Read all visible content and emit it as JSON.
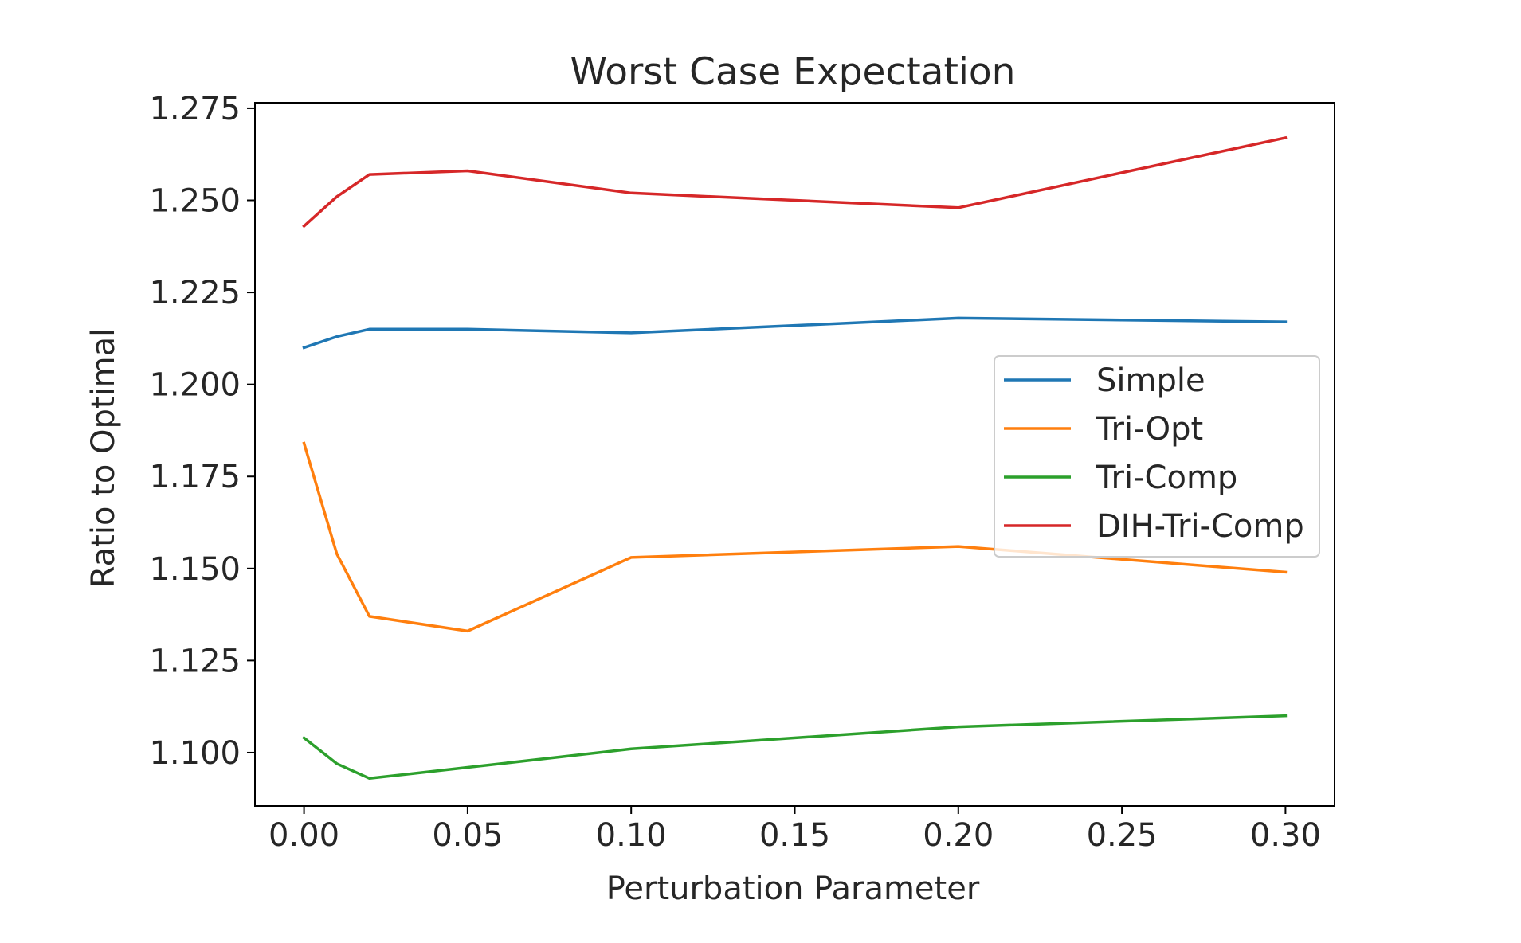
{
  "chart_data": {
    "type": "line",
    "title": "Worst Case Expectation",
    "xlabel": "Perturbation Parameter",
    "ylabel": "Ratio to Optimal",
    "xlim": [
      -0.015,
      0.315
    ],
    "ylim": [
      1.0855,
      1.2765
    ],
    "xticks": [
      0.0,
      0.05,
      0.1,
      0.15,
      0.2,
      0.25,
      0.3
    ],
    "xtick_labels": [
      "0.00",
      "0.05",
      "0.10",
      "0.15",
      "0.20",
      "0.25",
      "0.30"
    ],
    "yticks": [
      1.1,
      1.125,
      1.15,
      1.175,
      1.2,
      1.225,
      1.25,
      1.275
    ],
    "ytick_labels": [
      "1.100",
      "1.125",
      "1.150",
      "1.175",
      "1.200",
      "1.225",
      "1.250",
      "1.275"
    ],
    "grid": false,
    "legend_position": "center-right",
    "x": [
      0.0,
      0.01,
      0.02,
      0.05,
      0.1,
      0.2,
      0.3
    ],
    "series": [
      {
        "name": "Simple",
        "color": "#1f77b4",
        "values": [
          1.21,
          1.213,
          1.215,
          1.215,
          1.214,
          1.218,
          1.217
        ]
      },
      {
        "name": "Tri-Opt",
        "color": "#ff7f0e",
        "values": [
          1.184,
          1.154,
          1.137,
          1.133,
          1.153,
          1.156,
          1.149
        ]
      },
      {
        "name": "Tri-Comp",
        "color": "#2ca02c",
        "values": [
          1.104,
          1.097,
          1.093,
          1.096,
          1.101,
          1.107,
          1.11
        ]
      },
      {
        "name": "DIH-Tri-Comp",
        "color": "#d62728",
        "values": [
          1.243,
          1.251,
          1.257,
          1.258,
          1.252,
          1.248,
          1.267
        ]
      }
    ]
  }
}
